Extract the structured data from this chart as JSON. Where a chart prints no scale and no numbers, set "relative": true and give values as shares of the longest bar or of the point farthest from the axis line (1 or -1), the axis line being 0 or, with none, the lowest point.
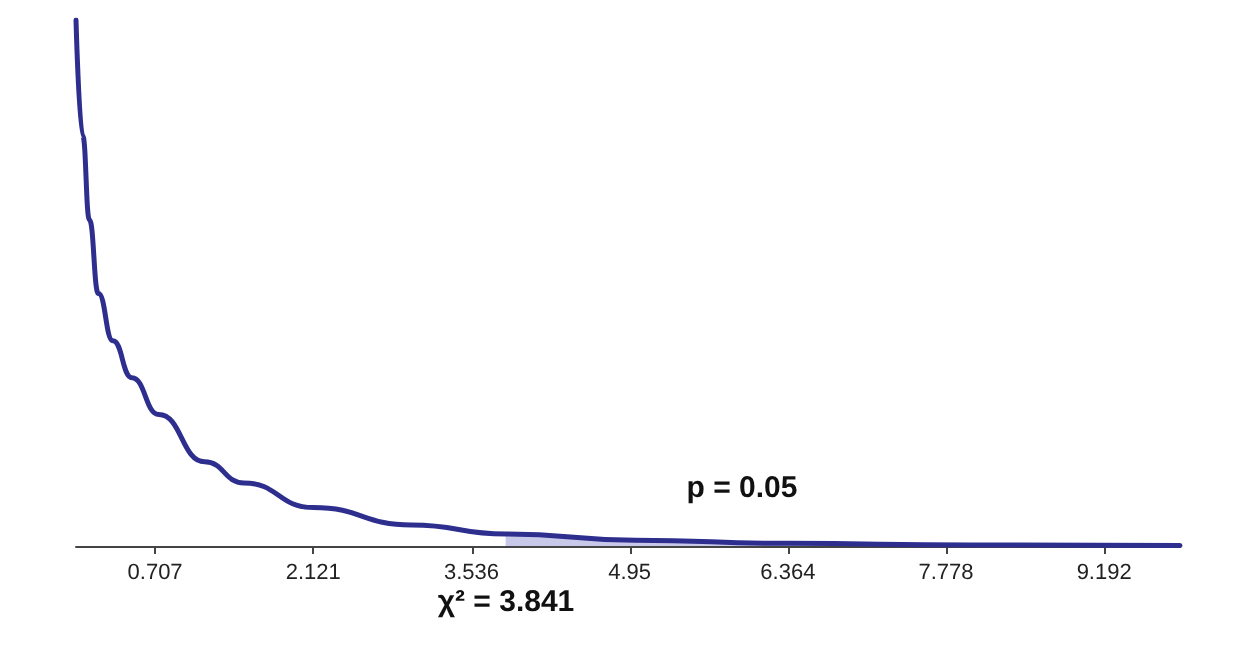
{
  "chart_data": {
    "type": "line",
    "relative": true,
    "marker": "none",
    "tick_labels": "x",
    "xlim": [
      0,
      9.87
    ],
    "xticks": [
      0.707,
      2.121,
      3.536,
      4.95,
      6.364,
      7.778,
      9.192
    ],
    "series": [
      {
        "color": "#2e2e8f",
        "x": [
          0,
          0.06,
          0.12,
          0.2,
          0.33,
          0.5,
          0.74,
          1.15,
          1.5,
          2.121,
          3.0,
          3.841,
          5.0,
          6.364,
          8.0,
          9.87
        ],
        "values": [
          1.0,
          0.78,
          0.62,
          0.48,
          0.39,
          0.32,
          0.25,
          0.16,
          0.12,
          0.073,
          0.04,
          0.023,
          0.011,
          0.005,
          0.002,
          0.001
        ]
      },
      {
        "type": "area",
        "color": "#c8c8e8",
        "x": [
          3.841,
          5.0,
          6.364,
          8.0,
          9.87
        ],
        "values": [
          0.023,
          0.011,
          0.005,
          0.002,
          0.001
        ]
      }
    ],
    "annotations": [
      "p = 0.05",
      "χ² = 3.841"
    ]
  }
}
